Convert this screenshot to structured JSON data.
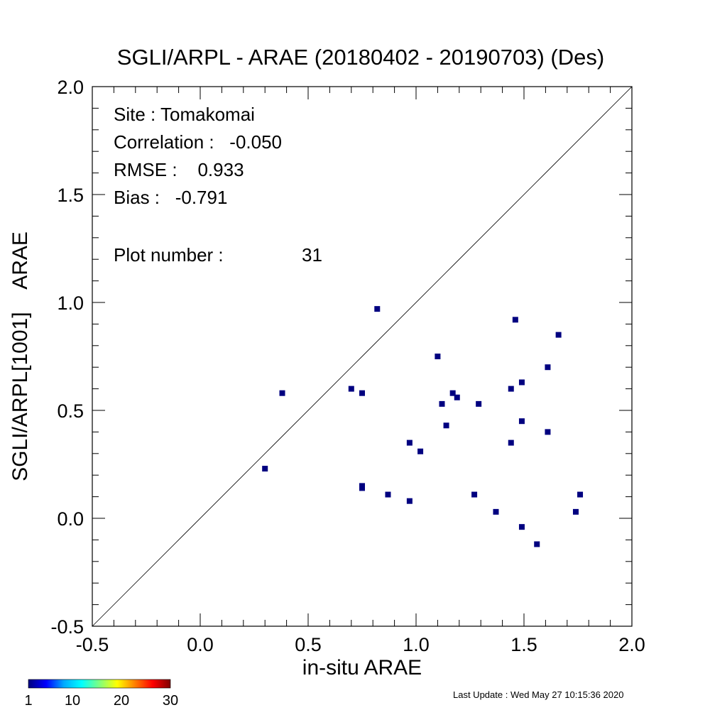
{
  "chart_data": {
    "type": "scatter",
    "title": "SGLI/ARPL - ARAE (20180402 - 20190703) (Des)",
    "xlabel": "in-situ ARAE",
    "ylabel": "SGLI/ARPL[1001]    ARAE",
    "xlim": [
      -0.5,
      2.0
    ],
    "ylim": [
      -0.5,
      2.0
    ],
    "x_ticks": [
      "-0.5",
      "0.0",
      "0.5",
      "1.0",
      "1.5",
      "2.0"
    ],
    "y_ticks": [
      "-0.5",
      "0.0",
      "0.5",
      "1.0",
      "1.5",
      "2.0"
    ],
    "reference_line": "1:1",
    "marker_color": "#000080",
    "stats": {
      "site": "Site : Tomakomai",
      "correlation": "Correlation :   -0.050",
      "rmse": "RMSE :    0.933",
      "bias": "Bias :   -0.791",
      "plot_number_label": "Plot number :",
      "plot_number": "31"
    },
    "points": [
      {
        "x": 0.3,
        "y": 0.23
      },
      {
        "x": 0.38,
        "y": 0.58
      },
      {
        "x": 0.7,
        "y": 0.6
      },
      {
        "x": 0.75,
        "y": 0.58
      },
      {
        "x": 0.75,
        "y": 0.15
      },
      {
        "x": 0.75,
        "y": 0.14
      },
      {
        "x": 0.82,
        "y": 0.97
      },
      {
        "x": 0.87,
        "y": 0.11
      },
      {
        "x": 0.97,
        "y": 0.35
      },
      {
        "x": 0.97,
        "y": 0.08
      },
      {
        "x": 1.02,
        "y": 0.31
      },
      {
        "x": 1.1,
        "y": 0.75
      },
      {
        "x": 1.12,
        "y": 0.53
      },
      {
        "x": 1.14,
        "y": 0.43
      },
      {
        "x": 1.17,
        "y": 0.58
      },
      {
        "x": 1.19,
        "y": 0.56
      },
      {
        "x": 1.27,
        "y": 0.11
      },
      {
        "x": 1.29,
        "y": 0.53
      },
      {
        "x": 1.37,
        "y": 0.03
      },
      {
        "x": 1.44,
        "y": 0.6
      },
      {
        "x": 1.44,
        "y": 0.35
      },
      {
        "x": 1.46,
        "y": 0.92
      },
      {
        "x": 1.49,
        "y": 0.63
      },
      {
        "x": 1.49,
        "y": 0.45
      },
      {
        "x": 1.49,
        "y": -0.04
      },
      {
        "x": 1.56,
        "y": -0.12
      },
      {
        "x": 1.61,
        "y": 0.7
      },
      {
        "x": 1.61,
        "y": 0.4
      },
      {
        "x": 1.66,
        "y": 0.85
      },
      {
        "x": 1.74,
        "y": 0.03
      },
      {
        "x": 1.76,
        "y": 0.11
      }
    ],
    "colorbar": {
      "range": [
        1,
        30
      ],
      "tick_labels": [
        "1",
        "10",
        "20",
        "30"
      ],
      "colors": [
        "#00007f",
        "#0000ff",
        "#00aaff",
        "#00ffff",
        "#7fff7f",
        "#ffff00",
        "#ff7f00",
        "#ff0000",
        "#7f0000"
      ]
    }
  },
  "footer": {
    "last_update": "Last Update : Wed May 27 10:15:36 2020"
  }
}
